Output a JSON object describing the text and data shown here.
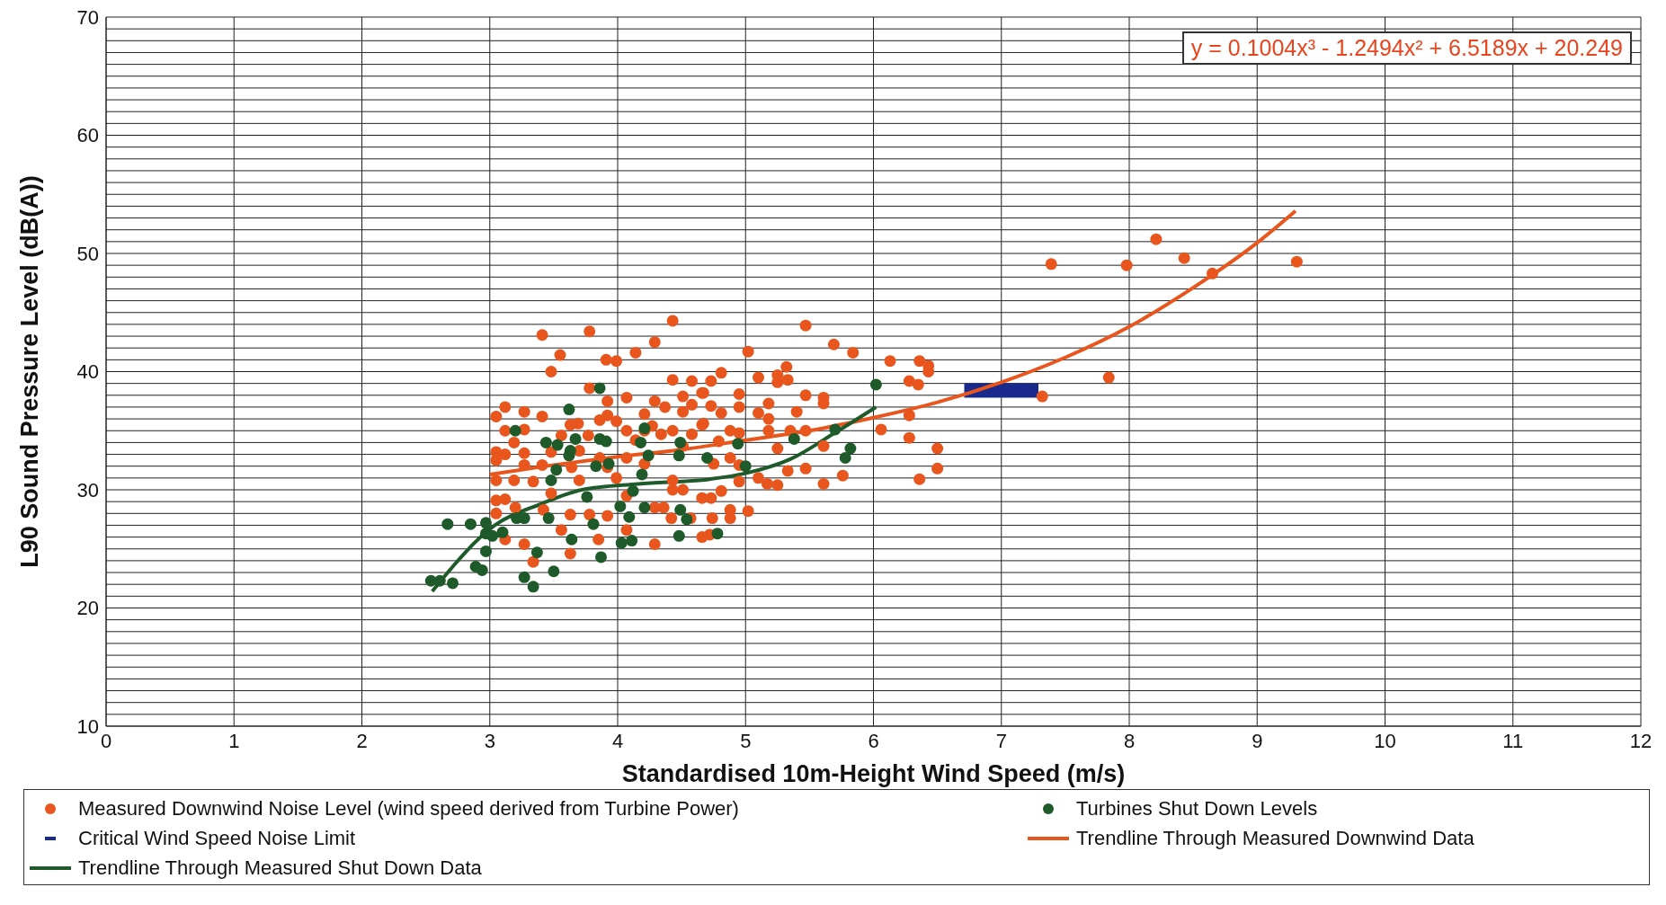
{
  "chart_data": {
    "type": "scatter",
    "xlabel": "Standardised 10m-Height Wind Speed (m/s)",
    "ylabel": "L90 Sound Pressure Level (dB(A))",
    "xlim": [
      0,
      12
    ],
    "xticks": [
      0,
      1,
      2,
      3,
      4,
      5,
      6,
      7,
      8,
      9,
      10,
      11,
      12
    ],
    "ylim": [
      10,
      70
    ],
    "yticks": [
      10,
      {
        "value": 11,
        "label": null
      },
      {
        "value": 12,
        "label": null
      },
      {
        "value": 13,
        "label": null
      },
      {
        "value": 14,
        "label": null
      },
      {
        "value": 15,
        "label": null
      },
      {
        "value": 16,
        "label": null
      },
      {
        "value": 17,
        "label": null
      },
      {
        "value": 18,
        "label": null
      },
      {
        "value": 19,
        "label": null
      },
      20,
      {
        "value": 21,
        "label": null
      },
      {
        "value": 22,
        "label": null
      },
      {
        "value": 23,
        "label": null
      },
      {
        "value": 24,
        "label": null
      },
      {
        "value": 25,
        "label": null
      },
      {
        "value": 26,
        "label": null
      },
      {
        "value": 27,
        "label": null
      },
      {
        "value": 28,
        "label": null
      },
      {
        "value": 29,
        "label": null
      },
      30,
      {
        "value": 31,
        "label": null
      },
      {
        "value": 32,
        "label": null
      },
      {
        "value": 33,
        "label": null
      },
      {
        "value": 34,
        "label": null
      },
      {
        "value": 35,
        "label": null
      },
      {
        "value": 36,
        "label": null
      },
      {
        "value": 37,
        "label": null
      },
      {
        "value": 38,
        "label": null
      },
      {
        "value": 39,
        "label": null
      },
      40,
      {
        "value": 41,
        "label": null
      },
      {
        "value": 42,
        "label": null
      },
      {
        "value": 43,
        "label": null
      },
      {
        "value": 44,
        "label": null
      },
      {
        "value": 45,
        "label": null
      },
      {
        "value": 46,
        "label": null
      },
      {
        "value": 47,
        "label": null
      },
      {
        "value": 48,
        "label": null
      },
      {
        "value": 49,
        "label": null
      },
      50,
      {
        "value": 51,
        "label": null
      },
      {
        "value": 52,
        "label": null
      },
      {
        "value": 53,
        "label": null
      },
      {
        "value": 54,
        "label": null
      },
      {
        "value": 55,
        "label": null
      },
      {
        "value": 56,
        "label": null
      },
      {
        "value": 57,
        "label": null
      },
      {
        "value": 58,
        "label": null
      },
      {
        "value": 59,
        "label": null
      },
      60,
      {
        "value": 61,
        "label": null
      },
      {
        "value": 62,
        "label": null
      },
      {
        "value": 63,
        "label": null
      },
      {
        "value": 64,
        "label": null
      },
      {
        "value": 65,
        "label": null
      },
      {
        "value": 66,
        "label": null
      },
      {
        "value": 67,
        "label": null
      },
      {
        "value": 68,
        "label": null
      },
      {
        "value": 69,
        "label": null
      },
      70
    ],
    "grid": true,
    "legend": "bottom",
    "line_style": "solid",
    "annotations": [
      "y = 0.1004x³ - 1.2494x² + 6.5189x + 20.249"
    ],
    "series": [
      {
        "name": "Measured Downwind Noise Level (wind speed derived from Turbine Power)",
        "marker": "circle",
        "color": "#e8561e",
        "x": [
          3.41,
          3.78,
          4.43,
          3.55,
          3.48,
          3.91,
          3.99,
          4.14,
          4.29,
          3.78,
          4.07,
          3.92,
          4.43,
          4.58,
          4.66,
          4.51,
          4.58,
          4.29,
          4.37,
          4.21,
          4.51,
          3.05,
          3.12,
          3.27,
          3.41,
          3.12,
          3.27,
          3.05,
          3.12,
          3.05,
          3.27,
          3.27,
          3.19,
          3.05,
          3.19,
          3.05,
          3.12,
          3.2,
          3.05,
          3.12,
          3.27,
          3.34,
          3.63,
          3.56,
          3.63,
          3.42,
          3.48,
          3.34,
          3.41,
          3.48,
          3.56,
          3.63,
          3.69,
          3.7,
          3.64,
          3.7,
          3.77,
          3.86,
          3.92,
          3.99,
          4.07,
          4.14,
          4.21,
          4.27,
          4.34,
          4.43,
          4.51,
          4.58,
          4.66,
          3.86,
          3.92,
          3.99,
          4.07,
          4.21,
          4.43,
          4.51,
          4.43,
          4.66,
          4.36,
          4.29,
          4.42,
          4.57,
          4.66,
          4.29,
          3.92,
          3.85,
          3.78,
          4.07,
          4.07,
          5.47,
          5.02,
          5.69,
          5.84,
          6.13,
          6.36,
          6.43,
          6.43,
          6.28,
          6.35,
          6.28,
          6.06,
          6.28,
          6.5,
          6.5,
          6.36,
          5.76,
          5.61,
          5.47,
          5.33,
          5.25,
          5.17,
          5.1,
          5.02,
          4.88,
          4.88,
          4.74,
          4.72,
          4.81,
          4.73,
          4.95,
          5.25,
          5.18,
          5.35,
          5.47,
          5.61,
          5.4,
          5.47,
          5.61,
          5.61,
          5.18,
          5.1,
          5.18,
          5.1,
          5.25,
          5.32,
          5.33,
          5.25,
          4.95,
          4.95,
          4.81,
          4.73,
          4.67,
          4.73,
          4.81,
          4.67,
          4.88,
          4.79,
          4.95,
          4.88,
          4.75,
          4.95,
          7.39,
          7.98,
          8.21,
          8.43,
          8.65,
          9.31,
          7.84,
          7.32
        ],
        "values": [
          43.1,
          43.4,
          44.3,
          41.4,
          40,
          41,
          40.9,
          41.6,
          42.5,
          38.6,
          37.8,
          37.5,
          39.3,
          39.2,
          38.2,
          37.9,
          37.2,
          37.5,
          37,
          36.4,
          36.6,
          36.2,
          37,
          36.6,
          36.2,
          35,
          35.1,
          33.2,
          33,
          32.5,
          33.1,
          32.1,
          34,
          30.8,
          30.8,
          29.1,
          29.2,
          28.5,
          28,
          25.8,
          25.4,
          23.9,
          24.6,
          26.6,
          27.9,
          28.3,
          29.7,
          30.7,
          32.1,
          33.2,
          34.6,
          35.5,
          35.6,
          33.3,
          31.9,
          30.8,
          34.6,
          35.9,
          36.3,
          35.8,
          35,
          34.2,
          35,
          35.4,
          34.7,
          35,
          33.7,
          34.7,
          35.5,
          32.7,
          31.9,
          31,
          32.7,
          32.2,
          30.8,
          30,
          30,
          29.3,
          28.5,
          28.5,
          27.6,
          27.6,
          26,
          25.4,
          27.8,
          25.8,
          27.9,
          29.5,
          26.6,
          43.9,
          41.7,
          42.3,
          41.6,
          40.9,
          40.9,
          40.5,
          40,
          39.2,
          38.9,
          36.3,
          35.1,
          34.4,
          33.5,
          31.8,
          30.9,
          31.2,
          30.5,
          31.8,
          31.6,
          30.4,
          30.5,
          31,
          28.2,
          28.3,
          27.6,
          27.6,
          26.2,
          29.9,
          29.3,
          30.7,
          33.5,
          35,
          35,
          35,
          33.7,
          36.6,
          38,
          37.8,
          37.3,
          37.3,
          36.5,
          36,
          39.5,
          39.7,
          40.4,
          39.3,
          39.1,
          38.1,
          37,
          39.9,
          39.2,
          38.2,
          37.1,
          36.5,
          35.6,
          35,
          34.1,
          34.8,
          32.7,
          32.2,
          32.1,
          49.1,
          49,
          51.2,
          49.6,
          48.3,
          49.3,
          39.5,
          37.9
        ]
      },
      {
        "name": "Turbines Shut Down Levels",
        "marker": "circle",
        "color": "#1e5a2a",
        "x": [
          2.67,
          2.85,
          2.97,
          2.97,
          3.02,
          3.1,
          2.97,
          2.89,
          2.94,
          2.54,
          2.61,
          2.71,
          3.27,
          3.34,
          3.5,
          3.37,
          3.64,
          3.87,
          3.46,
          3.27,
          3.21,
          3.76,
          3.81,
          4.03,
          4.11,
          4.02,
          4.09,
          4.21,
          4.12,
          4.19,
          4.49,
          4.54,
          4.48,
          3.83,
          3.93,
          3.52,
          3.48,
          3.2,
          3.44,
          3.53,
          3.67,
          3.63,
          3.62,
          3.62,
          3.86,
          3.86,
          3.91,
          4.21,
          4.18,
          4.24,
          4.49,
          4.48,
          4.7,
          6.02,
          5.7,
          5.82,
          5.78,
          5.38,
          5,
          4.94,
          4.78
        ],
        "values": [
          27.1,
          27.1,
          27.2,
          26.3,
          26.1,
          26.4,
          24.8,
          23.5,
          23.2,
          22.3,
          22.3,
          22.1,
          22.6,
          21.8,
          23.1,
          24.7,
          25.8,
          24.3,
          27.6,
          27.6,
          27.6,
          29.4,
          27.1,
          25.5,
          25.7,
          28.6,
          27.7,
          28.5,
          29.9,
          31.3,
          28.3,
          27.5,
          26.1,
          32,
          32.2,
          31.7,
          30.8,
          35,
          34,
          33.8,
          34.3,
          33.3,
          32.9,
          36.8,
          38.6,
          34.3,
          34.1,
          35.2,
          34,
          32.9,
          34,
          32.9,
          32.7,
          38.9,
          35.1,
          33.5,
          32.7,
          34.3,
          32,
          33.9,
          26.3
        ]
      },
      {
        "name": "Critical Wind Speed Noise Limit",
        "type": "line",
        "color": "#1a2a8c",
        "x": [
          6.71,
          7.29
        ],
        "values": [
          38.4,
          38.4
        ]
      },
      {
        "name": "Trendline Through Measured Downwind Data",
        "type": "line",
        "color": "#e8561e",
        "x": [
          3,
          3.5,
          4,
          4.5,
          5,
          5.5,
          6,
          6.5,
          7,
          7.5,
          8,
          8.5,
          9,
          9.3
        ],
        "values": [
          31.3,
          32.1,
          32.8,
          33.4,
          34.2,
          35,
          36.1,
          37.4,
          39.1,
          41.2,
          43.8,
          47.1,
          50.9,
          53.6
        ]
      },
      {
        "name": "Trendline Through Measured Shut Down Data",
        "type": "line",
        "color": "#1e5a2a",
        "x": [
          2.55,
          3.04,
          3.4,
          3.72,
          4.16,
          4.72,
          5,
          5.35,
          5.71,
          6.02
        ],
        "values": [
          21.4,
          27,
          28.8,
          30,
          30.5,
          30.9,
          31.4,
          32.6,
          34.9,
          37
        ]
      }
    ]
  }
}
